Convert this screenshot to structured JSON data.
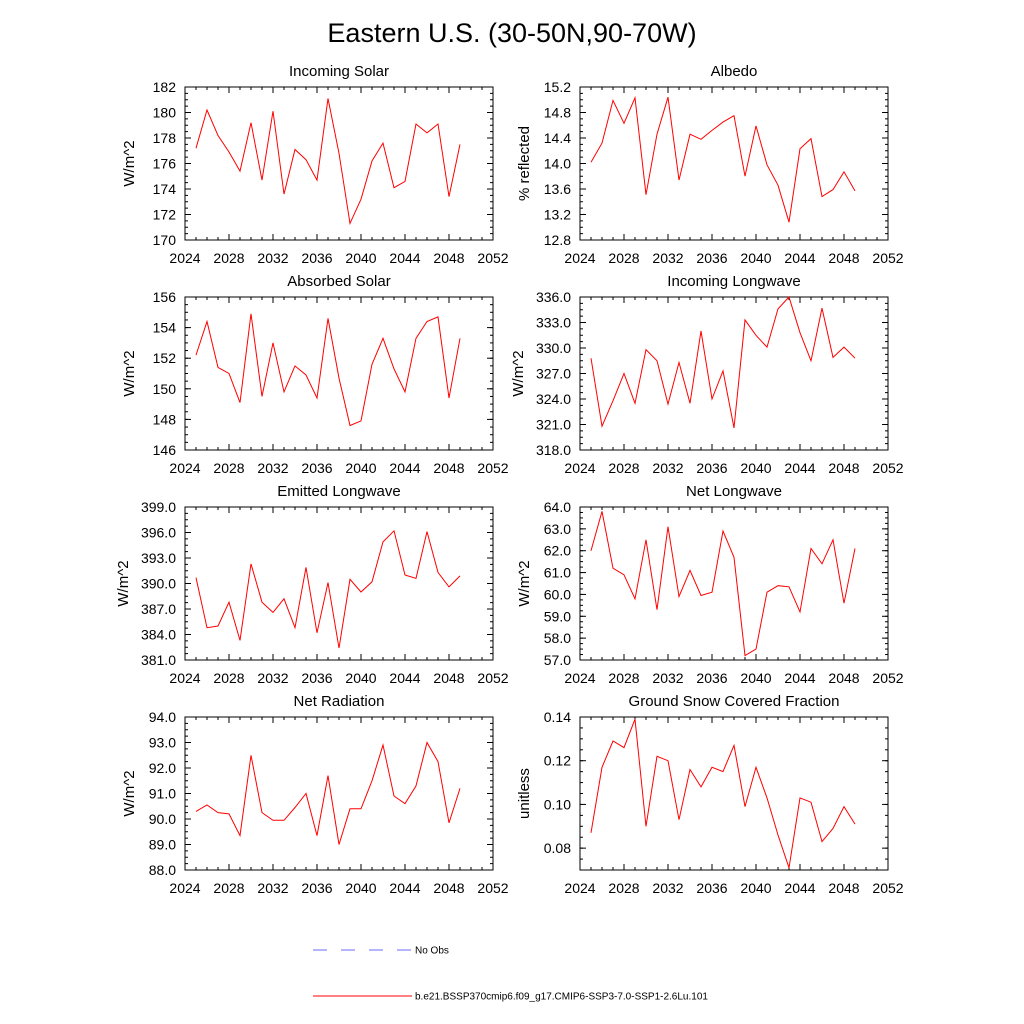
{
  "figure": {
    "title": "Eastern U.S. (30-50N,90-70W)",
    "line_color": "#ff0000",
    "obs_color": "#6a6aff"
  },
  "legend": {
    "obs_label": "No Obs",
    "model_label": "b.e21.BSSP370cmip6.f09_g17.CMIP6-SSP3-7.0-SSP1-2.6Lu.101"
  },
  "chart_data": [
    {
      "type": "line",
      "title": "Incoming Solar",
      "ylabel": "W/m^2",
      "xlim": [
        2024,
        2052
      ],
      "ylim": [
        170,
        182
      ],
      "xticks": [
        "2024",
        "2028",
        "2032",
        "2036",
        "2040",
        "2044",
        "2048",
        "2052"
      ],
      "yticks": [
        "170",
        "172",
        "174",
        "176",
        "178",
        "180",
        "182"
      ],
      "x": [
        2025,
        2026,
        2027,
        2028,
        2029,
        2030,
        2031,
        2032,
        2033,
        2034,
        2035,
        2036,
        2037,
        2038,
        2039,
        2040,
        2041,
        2042,
        2043,
        2044,
        2045,
        2046,
        2047,
        2048,
        2049
      ],
      "values": [
        177.2,
        180.2,
        178.2,
        176.9,
        175.4,
        179.2,
        174.7,
        180.1,
        173.6,
        177.1,
        176.3,
        174.7,
        181.1,
        176.8,
        171.3,
        173.2,
        176.2,
        177.6,
        174.1,
        174.6,
        179.1,
        178.4,
        179.1,
        173.4,
        177.5
      ]
    },
    {
      "type": "line",
      "title": "Albedo",
      "ylabel": "% reflected",
      "xlim": [
        2024,
        2052
      ],
      "ylim": [
        12.8,
        15.2
      ],
      "xticks": [
        "2024",
        "2028",
        "2032",
        "2036",
        "2040",
        "2044",
        "2048",
        "2052"
      ],
      "yticks": [
        "12.8",
        "13.2",
        "13.6",
        "14.0",
        "14.4",
        "14.8",
        "15.2"
      ],
      "x": [
        2025,
        2026,
        2027,
        2028,
        2029,
        2030,
        2031,
        2032,
        2033,
        2034,
        2035,
        2036,
        2037,
        2038,
        2039,
        2040,
        2041,
        2042,
        2043,
        2044,
        2045,
        2046,
        2047,
        2048,
        2049
      ],
      "values": [
        14.02,
        14.32,
        14.99,
        14.63,
        15.03,
        13.51,
        14.46,
        15.04,
        13.74,
        14.46,
        14.38,
        14.52,
        14.65,
        14.75,
        13.8,
        14.59,
        13.98,
        13.66,
        13.08,
        14.23,
        14.39,
        13.48,
        13.59,
        13.87,
        13.57
      ]
    },
    {
      "type": "line",
      "title": "Absorbed Solar",
      "ylabel": "W/m^2",
      "xlim": [
        2024,
        2052
      ],
      "ylim": [
        146,
        156
      ],
      "xticks": [
        "2024",
        "2028",
        "2032",
        "2036",
        "2040",
        "2044",
        "2048",
        "2052"
      ],
      "yticks": [
        "146",
        "148",
        "150",
        "152",
        "154",
        "156"
      ],
      "x": [
        2025,
        2026,
        2027,
        2028,
        2029,
        2030,
        2031,
        2032,
        2033,
        2034,
        2035,
        2036,
        2037,
        2038,
        2039,
        2040,
        2041,
        2042,
        2043,
        2044,
        2045,
        2046,
        2047,
        2048,
        2049
      ],
      "values": [
        152.2,
        154.4,
        151.4,
        151.0,
        149.1,
        154.9,
        149.5,
        153.0,
        149.8,
        151.5,
        150.9,
        149.4,
        154.6,
        150.7,
        147.6,
        147.9,
        151.6,
        153.3,
        151.3,
        149.8,
        153.3,
        154.4,
        154.7,
        149.4,
        153.3
      ]
    },
    {
      "type": "line",
      "title": "Incoming Longwave",
      "ylabel": "W/m^2",
      "xlim": [
        2024,
        2052
      ],
      "ylim": [
        318,
        336
      ],
      "xticks": [
        "2024",
        "2028",
        "2032",
        "2036",
        "2040",
        "2044",
        "2048",
        "2052"
      ],
      "yticks": [
        "318.0",
        "321.0",
        "324.0",
        "327.0",
        "330.0",
        "333.0",
        "336.0"
      ],
      "x": [
        2025,
        2026,
        2027,
        2028,
        2029,
        2030,
        2031,
        2032,
        2033,
        2034,
        2035,
        2036,
        2037,
        2038,
        2039,
        2040,
        2041,
        2042,
        2043,
        2044,
        2045,
        2046,
        2047,
        2048,
        2049
      ],
      "values": [
        328.8,
        320.8,
        323.8,
        327.0,
        323.5,
        329.8,
        328.5,
        323.4,
        328.3,
        323.5,
        332.0,
        324.0,
        327.3,
        320.6,
        333.3,
        331.5,
        330.1,
        334.6,
        336.0,
        331.8,
        328.5,
        334.7,
        328.9,
        330.1,
        328.8
      ]
    },
    {
      "type": "line",
      "title": "Emitted Longwave",
      "ylabel": "W/m^2",
      "xlim": [
        2024,
        2052
      ],
      "ylim": [
        381,
        399
      ],
      "xticks": [
        "2024",
        "2028",
        "2032",
        "2036",
        "2040",
        "2044",
        "2048",
        "2052"
      ],
      "yticks": [
        "381.0",
        "384.0",
        "387.0",
        "390.0",
        "393.0",
        "396.0",
        "399.0"
      ],
      "x": [
        2025,
        2026,
        2027,
        2028,
        2029,
        2030,
        2031,
        2032,
        2033,
        2034,
        2035,
        2036,
        2037,
        2038,
        2039,
        2040,
        2041,
        2042,
        2043,
        2044,
        2045,
        2046,
        2047,
        2048,
        2049
      ],
      "values": [
        390.7,
        384.8,
        385.0,
        387.8,
        383.3,
        392.3,
        387.8,
        386.6,
        388.2,
        384.8,
        391.9,
        384.2,
        390.1,
        382.4,
        390.5,
        389.0,
        390.2,
        394.9,
        396.2,
        391.0,
        390.6,
        396.1,
        391.3,
        389.6,
        390.9
      ]
    },
    {
      "type": "line",
      "title": "Net Longwave",
      "ylabel": "W/m^2",
      "xlim": [
        2024,
        2052
      ],
      "ylim": [
        57,
        64
      ],
      "xticks": [
        "2024",
        "2028",
        "2032",
        "2036",
        "2040",
        "2044",
        "2048",
        "2052"
      ],
      "yticks": [
        "57.0",
        "58.0",
        "59.0",
        "60.0",
        "61.0",
        "62.0",
        "63.0",
        "64.0"
      ],
      "x": [
        2025,
        2026,
        2027,
        2028,
        2029,
        2030,
        2031,
        2032,
        2033,
        2034,
        2035,
        2036,
        2037,
        2038,
        2039,
        2040,
        2041,
        2042,
        2043,
        2044,
        2045,
        2046,
        2047,
        2048,
        2049
      ],
      "values": [
        62.0,
        63.8,
        61.2,
        60.9,
        59.8,
        62.5,
        59.3,
        63.1,
        59.9,
        61.1,
        59.95,
        60.1,
        62.9,
        61.7,
        57.2,
        57.5,
        60.1,
        60.4,
        60.35,
        59.2,
        62.1,
        61.4,
        62.5,
        59.6,
        62.1
      ]
    },
    {
      "type": "line",
      "title": "Net Radiation",
      "ylabel": "W/m^2",
      "xlim": [
        2024,
        2052
      ],
      "ylim": [
        88,
        94
      ],
      "xticks": [
        "2024",
        "2028",
        "2032",
        "2036",
        "2040",
        "2044",
        "2048",
        "2052"
      ],
      "yticks": [
        "88.0",
        "89.0",
        "90.0",
        "91.0",
        "92.0",
        "93.0",
        "94.0"
      ],
      "x": [
        2025,
        2026,
        2027,
        2028,
        2029,
        2030,
        2031,
        2032,
        2033,
        2034,
        2035,
        2036,
        2037,
        2038,
        2039,
        2040,
        2041,
        2042,
        2043,
        2044,
        2045,
        2046,
        2047,
        2048,
        2049
      ],
      "values": [
        90.3,
        90.55,
        90.25,
        90.2,
        89.35,
        92.5,
        90.25,
        89.95,
        89.95,
        90.45,
        91.0,
        89.35,
        91.7,
        89.0,
        90.4,
        90.4,
        91.5,
        92.9,
        90.9,
        90.6,
        91.3,
        93.0,
        92.25,
        89.85,
        91.2
      ]
    },
    {
      "type": "line",
      "title": "Ground Snow Covered Fraction",
      "ylabel": "unitless",
      "xlim": [
        2024,
        2052
      ],
      "ylim": [
        0.07,
        0.14
      ],
      "xticks": [
        "2024",
        "2028",
        "2032",
        "2036",
        "2040",
        "2044",
        "2048",
        "2052"
      ],
      "yticks": [
        "0.08",
        "0.10",
        "0.12",
        "0.14"
      ],
      "ytick_values": [
        0.08,
        0.1,
        0.12,
        0.14
      ],
      "x": [
        2025,
        2026,
        2027,
        2028,
        2029,
        2030,
        2031,
        2032,
        2033,
        2034,
        2035,
        2036,
        2037,
        2038,
        2039,
        2040,
        2041,
        2042,
        2043,
        2044,
        2045,
        2046,
        2047,
        2048,
        2049
      ],
      "values": [
        0.087,
        0.117,
        0.129,
        0.126,
        0.139,
        0.09,
        0.122,
        0.12,
        0.093,
        0.116,
        0.108,
        0.117,
        0.115,
        0.127,
        0.099,
        0.117,
        0.103,
        0.086,
        0.071,
        0.103,
        0.101,
        0.083,
        0.089,
        0.099,
        0.091
      ]
    }
  ]
}
